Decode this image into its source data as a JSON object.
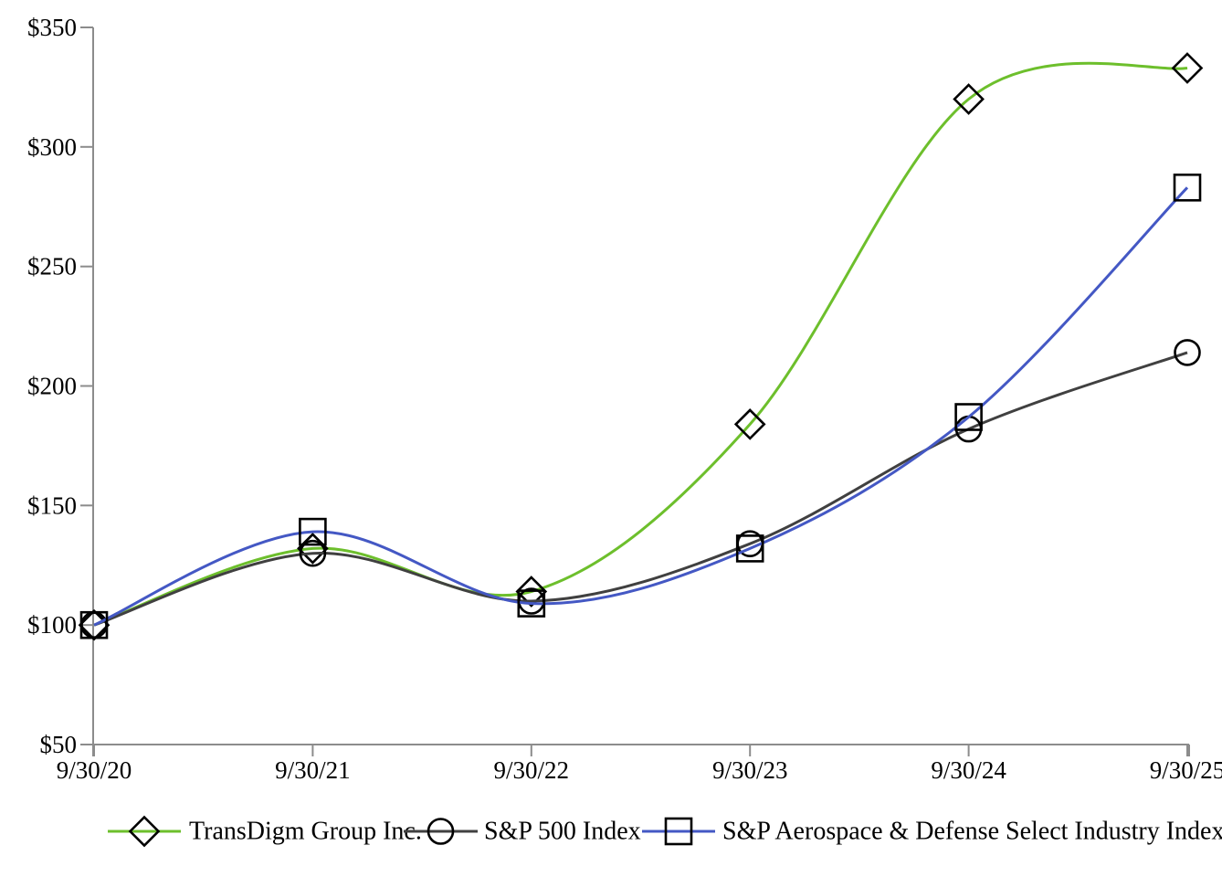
{
  "chart_data": {
    "type": "line",
    "line_style": "smooth",
    "title": "",
    "categories": [
      "9/30/20",
      "9/30/21",
      "9/30/22",
      "9/30/23",
      "9/30/24",
      "9/30/25"
    ],
    "series": [
      {
        "name": "TransDigm Group Inc.",
        "values": [
          100,
          132,
          114,
          184,
          320,
          333
        ],
        "color": "#6DBF2C",
        "marker": "diamond",
        "marker_color": "#000000"
      },
      {
        "name": "S&P 500 Index",
        "values": [
          100,
          130,
          110,
          134,
          182,
          214
        ],
        "color": "#404040",
        "marker": "circle",
        "marker_color": "#000000"
      },
      {
        "name": "S&P Aerospace & Defense Select Industry Index",
        "values": [
          100,
          139,
          109,
          132,
          187,
          283
        ],
        "color": "#4458C4",
        "marker": "square",
        "marker_color": "#000000"
      }
    ],
    "y_axis": {
      "min": 50,
      "max": 350,
      "step": 50,
      "tick_labels": [
        "$50",
        "$100",
        "$150",
        "$200",
        "$250",
        "$300",
        "$350"
      ]
    },
    "x_axis": {
      "tick_labels": [
        "9/30/20",
        "9/30/21",
        "9/30/22",
        "9/30/23",
        "9/30/24",
        "9/30/25"
      ]
    },
    "grid": false,
    "legend_position": "bottom",
    "axis_color": "#8C8C8C",
    "background": "#FFFFFF"
  }
}
